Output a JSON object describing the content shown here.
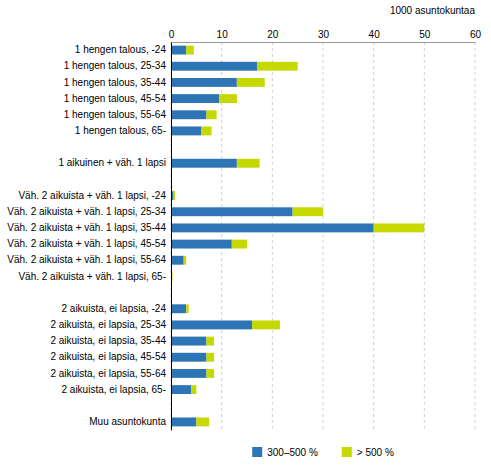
{
  "chart_data": {
    "type": "bar",
    "orientation": "horizontal",
    "stacked": true,
    "categories": [
      "1 hengen talous, -24",
      "1 hengen talous, 25-34",
      "1 hengen talous, 35-44",
      "1 hengen talous, 45-54",
      "1 hengen talous, 55-64",
      "1 hengen talous, 65-",
      null,
      "1 aikuinen + väh. 1 lapsi",
      null,
      "Väh. 2 aikuista + väh. 1 lapsi, -24",
      "Väh. 2 aikuista + väh. 1 lapsi, 25-34",
      "Väh. 2 aikuista + väh. 1 lapsi, 35-44",
      "Väh. 2 aikuista + väh. 1 lapsi, 45-54",
      "Väh. 2 aikuista + väh. 1 lapsi, 55-64",
      "Väh. 2 aikuista + väh. 1 lapsi, 65-",
      null,
      "2 aikuista, ei lapsia, -24",
      "2 aikuista, ei lapsia, 25-34",
      "2 aikuista, ei lapsia, 35-44",
      "2 aikuista, ei lapsia, 45-54",
      "2 aikuista, ei lapsia, 55-64",
      "2 aikuista, ei lapsia, 65-",
      null,
      "Muu asuntokunta"
    ],
    "series": [
      {
        "name": "300–500 %",
        "color": "#2E75B6",
        "values": [
          3.0,
          17.0,
          13.0,
          9.5,
          7.0,
          6.0,
          0,
          13.0,
          0,
          0.5,
          24.0,
          40.0,
          12.0,
          2.5,
          0.2,
          0,
          3.0,
          16.0,
          7.0,
          7.0,
          7.0,
          4.0,
          0,
          5.0
        ]
      },
      {
        "name": "> 500 %",
        "color": "#C5D900",
        "values": [
          1.5,
          8.0,
          5.5,
          3.5,
          2.0,
          2.0,
          0,
          4.5,
          0,
          0.3,
          6.0,
          10.0,
          3.0,
          0.5,
          0.1,
          0,
          0.5,
          5.5,
          1.5,
          1.5,
          1.5,
          1.0,
          0,
          2.5
        ]
      }
    ],
    "x_label": "1000 asuntokuntaa",
    "xlim": [
      0,
      60
    ],
    "xticks": [
      0,
      10,
      20,
      30,
      40,
      50,
      60
    ],
    "grid": true,
    "legend": "bottom"
  }
}
